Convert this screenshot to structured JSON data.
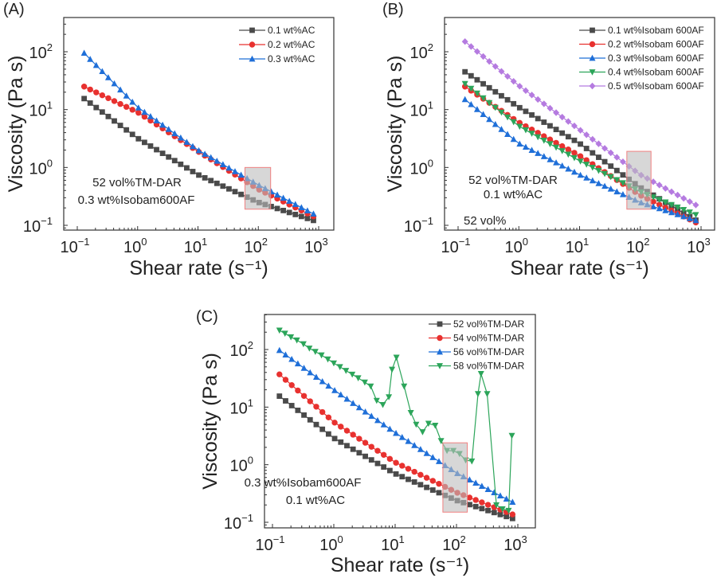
{
  "chart_data": [
    {
      "type": "line",
      "panel": "(A)",
      "xlabel": "Shear rate (s⁻¹)",
      "ylabel": "Viscosity (Pa s)",
      "xscale": "log",
      "yscale": "log",
      "xlim": [
        0.08,
        1500
      ],
      "ylim": [
        0.08,
        400
      ],
      "xticks": [
        "10^-1",
        "10^0",
        "10^1",
        "10^2",
        "10^3"
      ],
      "yticks": [
        "10^-1",
        "10^0",
        "10^1",
        "10^2"
      ],
      "legend_position": "top-right",
      "annotations": [
        "52 vol%TM-DAR",
        "0.3 wt%Isobam600AF"
      ],
      "highlight_region": {
        "x": [
          60,
          160
        ],
        "y": [
          0.19,
          1.0
        ]
      },
      "series": [
        {
          "name": "0.1 wt%AC",
          "color": "#4a4a4a",
          "marker": "square",
          "start": 15.5,
          "end": 0.12,
          "shape": [
            [
              0.13,
              15.5
            ],
            [
              1,
              3.2
            ],
            [
              10,
              0.75
            ],
            [
              100,
              0.25
            ],
            [
              850,
              0.12
            ]
          ]
        },
        {
          "name": "0.2 wt%AC",
          "color": "#e8312f",
          "marker": "circle",
          "start": 25,
          "end": 0.14,
          "shape": [
            [
              0.13,
              25
            ],
            [
              1,
              9
            ],
            [
              10,
              1.9
            ],
            [
              100,
              0.42
            ],
            [
              850,
              0.14
            ]
          ]
        },
        {
          "name": "0.3 wt%AC",
          "color": "#1f6fd8",
          "marker": "triangle-up",
          "start": 95,
          "end": 0.155,
          "shape": [
            [
              0.13,
              95
            ],
            [
              1,
              11
            ],
            [
              10,
              2.0
            ],
            [
              100,
              0.5
            ],
            [
              850,
              0.155
            ]
          ]
        }
      ]
    },
    {
      "type": "line",
      "panel": "(B)",
      "xlabel": "Shear rate (s⁻¹)",
      "ylabel": "Viscosity (Pa s)",
      "xscale": "log",
      "yscale": "log",
      "xlim": [
        0.08,
        1500
      ],
      "ylim": [
        0.08,
        400
      ],
      "xticks": [
        "10^-1",
        "10^0",
        "10^1",
        "10^2",
        "10^3"
      ],
      "yticks": [
        "10^-1",
        "10^0",
        "10^1",
        "10^2"
      ],
      "legend_position": "top-right",
      "annotations": [
        "52 vol%TM-DAR",
        "0.1 wt%AC",
        "52 vol%"
      ],
      "highlight_region": {
        "x": [
          60,
          150
        ],
        "y": [
          0.19,
          1.9
        ]
      },
      "series": [
        {
          "name": "0.1 wt%Isobam 600AF",
          "color": "#4a4a4a",
          "marker": "square",
          "shape": [
            [
              0.13,
              45
            ],
            [
              1,
              11
            ],
            [
              10,
              2.6
            ],
            [
              100,
              0.45
            ],
            [
              850,
              0.12
            ]
          ]
        },
        {
          "name": "0.2 wt%Isobam 600AF",
          "color": "#e8312f",
          "marker": "circle",
          "shape": [
            [
              0.13,
              25
            ],
            [
              1,
              6
            ],
            [
              10,
              1.6
            ],
            [
              100,
              0.33
            ],
            [
              850,
              0.11
            ]
          ]
        },
        {
          "name": "0.3 wt%Isobam 600AF",
          "color": "#1f6fd8",
          "marker": "triangle-up",
          "shape": [
            [
              0.13,
              15
            ],
            [
              1,
              2.6
            ],
            [
              10,
              0.75
            ],
            [
              100,
              0.25
            ],
            [
              850,
              0.12
            ]
          ]
        },
        {
          "name": "0.4 wt%Isobam 600AF",
          "color": "#2ca55a",
          "marker": "triangle-down",
          "shape": [
            [
              0.13,
              28
            ],
            [
              1,
              5.2
            ],
            [
              10,
              1.3
            ],
            [
              100,
              0.38
            ],
            [
              850,
              0.15
            ]
          ]
        },
        {
          "name": "0.5 wt%Isobam 600AF",
          "color": "#b57be0",
          "marker": "diamond",
          "shape": [
            [
              0.13,
              150
            ],
            [
              1,
              26
            ],
            [
              10,
              4.5
            ],
            [
              100,
              0.75
            ],
            [
              850,
              0.22
            ]
          ]
        }
      ]
    },
    {
      "type": "line",
      "panel": "(C)",
      "xlabel": "Shear rate (s⁻¹)",
      "ylabel": "Viscosity (Pa s)",
      "xscale": "log",
      "yscale": "log",
      "xlim": [
        0.08,
        1500
      ],
      "ylim": [
        0.08,
        400
      ],
      "xticks": [
        "10^-1",
        "10^0",
        "10^1",
        "10^2",
        "10^3"
      ],
      "yticks": [
        "10^-1",
        "10^0",
        "10^1",
        "10^2"
      ],
      "legend_position": "top-right",
      "annotations": [
        "0.3 wt%Isobam600AF",
        "0.1 wt%AC"
      ],
      "highlight_region": {
        "x": [
          60,
          150
        ],
        "y": [
          0.15,
          2.4
        ]
      },
      "series": [
        {
          "name": "52 vol%TM-DAR",
          "color": "#4a4a4a",
          "marker": "square",
          "shape": [
            [
              0.13,
              15.5
            ],
            [
              1,
              2.9
            ],
            [
              10,
              0.7
            ],
            [
              100,
              0.24
            ],
            [
              850,
              0.115
            ]
          ]
        },
        {
          "name": "54 vol%TM-DAR",
          "color": "#e8312f",
          "marker": "circle",
          "shape": [
            [
              0.13,
              37
            ],
            [
              1,
              5.5
            ],
            [
              10,
              1.1
            ],
            [
              100,
              0.33
            ],
            [
              850,
              0.135
            ]
          ]
        },
        {
          "name": "56 vol%TM-DAR",
          "color": "#1f6fd8",
          "marker": "triangle-up",
          "shape": [
            [
              0.13,
              97
            ],
            [
              1,
              20
            ],
            [
              10,
              3.6
            ],
            [
              100,
              0.72
            ],
            [
              850,
              0.22
            ]
          ]
        },
        {
          "name": "58 vol%TM-DAR",
          "color": "#2ca55a",
          "marker": "triangle-down",
          "points": [
            [
              0.13,
              215
            ],
            [
              0.16,
              190
            ],
            [
              0.2,
              165
            ],
            [
              0.25,
              145
            ],
            [
              0.32,
              125
            ],
            [
              0.4,
              105
            ],
            [
              0.5,
              92
            ],
            [
              0.63,
              80
            ],
            [
              0.8,
              68
            ],
            [
              1.0,
              58
            ],
            [
              1.26,
              50
            ],
            [
              1.58,
              43
            ],
            [
              2.0,
              37
            ],
            [
              2.5,
              32
            ],
            [
              3.2,
              27
            ],
            [
              4.0,
              23
            ],
            [
              5.0,
              13
            ],
            [
              6.3,
              11
            ],
            [
              7.9,
              15
            ],
            [
              8.9,
              45
            ],
            [
              10.5,
              73
            ],
            [
              14,
              23
            ],
            [
              18,
              8
            ],
            [
              22,
              5
            ],
            [
              28,
              3.7
            ],
            [
              35,
              5.2
            ],
            [
              45,
              4.8
            ],
            [
              56,
              2.6
            ],
            [
              70,
              1.75
            ],
            [
              89,
              1.75
            ],
            [
              112,
              1.55
            ],
            [
              141,
              1.2
            ],
            [
              178,
              1.15
            ],
            [
              224,
              17
            ],
            [
              251,
              38
            ],
            [
              316,
              17
            ],
            [
              447,
              0.2
            ],
            [
              562,
              0.17
            ],
            [
              708,
              0.16
            ],
            [
              800,
              3.2
            ]
          ]
        }
      ]
    }
  ]
}
